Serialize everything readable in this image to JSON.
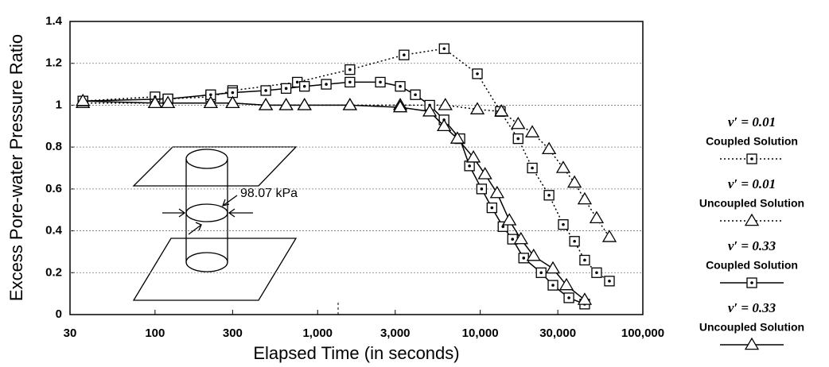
{
  "chart_data": {
    "type": "line",
    "x_label": "Elapsed Time (in seconds)",
    "y_label": "Excess Pore-water Pressure Ratio",
    "x_scale": "log",
    "xlim": [
      30,
      100000
    ],
    "xticks": [
      30,
      100,
      300,
      {
        "value": 1000,
        "label": "1,000"
      },
      {
        "value": 3000,
        "label": "3,000"
      },
      {
        "value": 10000,
        "label": "10,000"
      },
      {
        "value": 30000,
        "label": "30,000"
      },
      {
        "value": 100000,
        "label": "100,000"
      }
    ],
    "ylim": [
      0,
      1.4
    ],
    "yticks": [
      0,
      0.2,
      0.4,
      0.6,
      0.8,
      1,
      1.2,
      1.4
    ],
    "grid": true,
    "annotation": "98.07 kPa",
    "series": [
      {
        "parameter": "ν′ = 0.01",
        "name": "Coupled Solution",
        "color": "#000000",
        "linestyle": "dotted",
        "marker": "square",
        "x": [
          36,
          100,
          120,
          220,
          300,
          750,
          1580,
          3400,
          6000,
          9600,
          13300,
          17100,
          20900,
          26500,
          32400,
          38000,
          43900,
          52000,
          62300
        ],
        "values": [
          1.02,
          1.04,
          1.03,
          1.04,
          1.07,
          1.11,
          1.17,
          1.24,
          1.27,
          1.15,
          0.97,
          0.84,
          0.7,
          0.57,
          0.43,
          0.35,
          0.26,
          0.2,
          0.16
        ]
      },
      {
        "parameter": "ν′ = 0.01",
        "name": "Uncoupled Solution",
        "color": "#000000",
        "linestyle": "dotted",
        "marker": "triangle",
        "x": [
          36,
          100,
          120,
          220,
          300,
          480,
          640,
          830,
          1580,
          3220,
          6100,
          9600,
          13500,
          17100,
          20900,
          26500,
          32400,
          38000,
          43900,
          52000,
          62300
        ],
        "values": [
          1.01,
          1.01,
          1.01,
          1.01,
          1.01,
          1.0,
          1.0,
          1.0,
          1.0,
          1.0,
          1.0,
          0.98,
          0.97,
          0.91,
          0.87,
          0.79,
          0.7,
          0.63,
          0.55,
          0.46,
          0.37
        ]
      },
      {
        "parameter": "ν′ = 0.33",
        "name": "Coupled Solution",
        "color": "#000000",
        "linestyle": "solid",
        "marker": "square",
        "x": [
          36,
          120,
          220,
          300,
          480,
          640,
          830,
          1130,
          1580,
          2430,
          3220,
          3990,
          4890,
          5990,
          7500,
          8590,
          10200,
          11800,
          13800,
          15800,
          18500,
          23700,
          28000,
          35100,
          43900
        ],
        "values": [
          1.02,
          1.03,
          1.05,
          1.06,
          1.07,
          1.08,
          1.09,
          1.1,
          1.11,
          1.11,
          1.09,
          1.05,
          1.0,
          0.93,
          0.84,
          0.71,
          0.6,
          0.51,
          0.42,
          0.36,
          0.27,
          0.2,
          0.14,
          0.08,
          0.05
        ]
      },
      {
        "parameter": "ν′ = 0.33",
        "name": "Uncoupled Solution",
        "color": "#000000",
        "linestyle": "solid",
        "marker": "triangle",
        "x": [
          36,
          100,
          120,
          220,
          300,
          480,
          640,
          830,
          1580,
          3220,
          4890,
          5990,
          7240,
          9080,
          10700,
          12700,
          15100,
          17800,
          21300,
          28000,
          33900,
          43900
        ],
        "values": [
          1.02,
          1.01,
          1.01,
          1.01,
          1.01,
          1.0,
          1.0,
          1.0,
          1.0,
          0.99,
          0.97,
          0.9,
          0.84,
          0.75,
          0.67,
          0.58,
          0.45,
          0.36,
          0.28,
          0.22,
          0.14,
          0.07
        ]
      }
    ]
  }
}
